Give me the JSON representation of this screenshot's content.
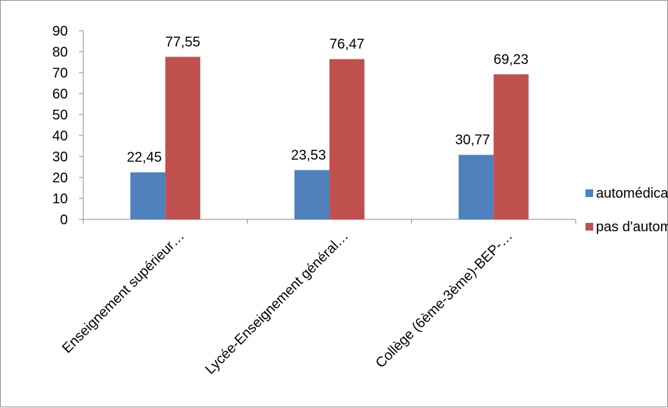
{
  "chart_data": {
    "type": "bar",
    "title": "",
    "xlabel": "",
    "ylabel": "",
    "ylim": [
      0,
      90
    ],
    "yticks": [
      0,
      10,
      20,
      30,
      40,
      50,
      60,
      70,
      80,
      90
    ],
    "categories": [
      "Enseignement supérieur…",
      "Lycée-Enseignement général…",
      "Collège (6ème-3ème)-BEP-…"
    ],
    "series": [
      {
        "name": "automédication",
        "color": "#4f81bd",
        "values": [
          22.45,
          23.53,
          30.77
        ],
        "labels": [
          "22,45",
          "23,53",
          "30,77"
        ]
      },
      {
        "name": "pas d'automédication",
        "color": "#c0504d",
        "values": [
          77.55,
          76.47,
          69.23
        ],
        "labels": [
          "77,55",
          "76,47",
          "69,23"
        ]
      }
    ],
    "grid": false,
    "legend": "right"
  }
}
